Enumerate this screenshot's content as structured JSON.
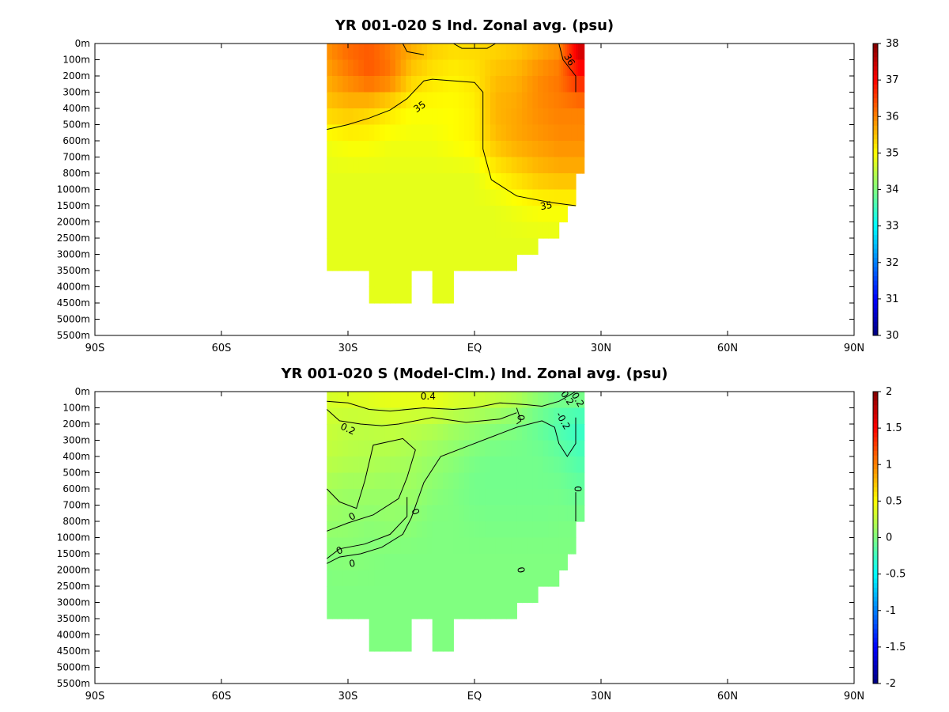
{
  "chart_data": [
    {
      "type": "heatmap",
      "title": "YR 001-020 S Ind. Zonal avg. (psu)",
      "x_tick_labels": [
        "90S",
        "60S",
        "30S",
        "EQ",
        "30N",
        "60N",
        "90N"
      ],
      "x_tick_values": [
        -90,
        -60,
        -30,
        0,
        30,
        60,
        90
      ],
      "xlim": [
        -90,
        90
      ],
      "y_tick_labels": [
        "0m",
        "100m",
        "200m",
        "300m",
        "400m",
        "500m",
        "600m",
        "700m",
        "800m",
        "1000m",
        "1500m",
        "2000m",
        "2500m",
        "3000m",
        "3500m",
        "4000m",
        "4500m",
        "5000m",
        "5500m"
      ],
      "colorbar": {
        "min": 30,
        "max": 38,
        "tick_labels": [
          "38",
          "37",
          "36",
          "35",
          "34",
          "33",
          "32",
          "31",
          "30"
        ],
        "tick_values": [
          38,
          37,
          36,
          35,
          34,
          33,
          32,
          31,
          30
        ],
        "colormap": "jet"
      },
      "contour_labels": [
        "35",
        "35",
        "36"
      ],
      "contour_levels": [
        35,
        36
      ],
      "domain": {
        "depth_levels": 18,
        "lat_edges": [
          -35,
          -30,
          -25,
          -20,
          -15,
          -10,
          -5,
          0,
          5,
          10,
          15,
          20,
          22,
          24,
          26
        ],
        "column_max_depth_index": [
          14,
          14,
          16,
          16,
          14,
          16,
          14,
          14,
          14,
          13,
          12,
          11,
          10,
          8
        ]
      },
      "field": {
        "lat": [
          -35,
          -30,
          -25,
          -20,
          -15,
          -10,
          -5,
          0,
          5,
          10,
          15,
          20,
          25
        ],
        "depth_index": [
          0,
          2,
          4,
          6,
          8,
          10,
          12,
          14,
          16
        ],
        "values": [
          [
            35.9,
            36.2,
            36.3,
            36.0,
            35.7,
            35.4,
            35.3,
            35.3,
            35.3,
            35.4,
            35.6,
            35.8,
            37.5
          ],
          [
            35.7,
            36.0,
            36.3,
            36.1,
            35.4,
            35.2,
            35.1,
            35.2,
            35.5,
            35.6,
            35.9,
            36.1,
            36.8
          ],
          [
            35.4,
            35.5,
            35.4,
            35.2,
            35.0,
            35.0,
            35.0,
            35.1,
            35.6,
            35.7,
            35.9,
            36.0,
            36.0
          ],
          [
            34.9,
            35.0,
            35.0,
            34.9,
            34.9,
            34.9,
            35.0,
            35.1,
            35.5,
            35.7,
            35.8,
            35.9,
            35.9
          ],
          [
            34.8,
            34.8,
            34.8,
            34.8,
            34.8,
            34.8,
            34.8,
            34.8,
            35.1,
            35.3,
            35.5,
            35.6,
            35.6
          ],
          [
            34.8,
            34.8,
            34.8,
            34.8,
            34.8,
            34.8,
            34.8,
            34.8,
            34.8,
            34.9,
            35.0,
            35.0,
            35.0
          ],
          [
            34.8,
            34.8,
            34.8,
            34.8,
            34.8,
            34.8,
            34.8,
            34.8,
            34.8,
            34.8,
            34.8,
            34.8,
            34.8
          ],
          [
            34.8,
            34.8,
            34.8,
            34.8,
            34.8,
            34.8,
            34.8,
            34.8,
            34.8,
            34.8,
            34.8,
            34.8,
            34.8
          ],
          [
            34.8,
            34.8,
            34.8,
            34.8,
            34.8,
            34.8,
            34.8,
            34.8,
            34.8,
            34.8,
            34.8,
            34.8,
            34.8
          ]
        ]
      }
    },
    {
      "type": "heatmap",
      "title": "YR 001-020 S (Model-Clm.) Ind. Zonal avg. (psu)",
      "x_tick_labels": [
        "90S",
        "60S",
        "30S",
        "EQ",
        "30N",
        "60N",
        "90N"
      ],
      "x_tick_values": [
        -90,
        -60,
        -30,
        0,
        30,
        60,
        90
      ],
      "xlim": [
        -90,
        90
      ],
      "y_tick_labels": [
        "0m",
        "100m",
        "200m",
        "300m",
        "400m",
        "500m",
        "600m",
        "700m",
        "800m",
        "1000m",
        "1500m",
        "2000m",
        "2500m",
        "3000m",
        "3500m",
        "4000m",
        "4500m",
        "5000m",
        "5500m"
      ],
      "colorbar": {
        "min": -2,
        "max": 2,
        "tick_labels": [
          "2",
          "1.5",
          "1",
          "0.5",
          "0",
          "-0.5",
          "-1",
          "-1.5",
          "-2"
        ],
        "tick_values": [
          2,
          1.5,
          1,
          0.5,
          0,
          -0.5,
          -1,
          -1.5,
          -2
        ],
        "colormap": "jet"
      },
      "contour_labels": [
        "0.4",
        "0.2",
        "0.2",
        "-0.2",
        "0.2",
        "0",
        "0",
        "0",
        "0",
        "0",
        "0",
        "0"
      ],
      "contour_levels": [
        -0.2,
        0,
        0.2,
        0.4
      ],
      "domain": {
        "depth_levels": 18,
        "lat_edges": [
          -35,
          -30,
          -25,
          -20,
          -15,
          -10,
          -5,
          0,
          5,
          10,
          15,
          20,
          22,
          24,
          26
        ],
        "column_max_depth_index": [
          14,
          14,
          16,
          16,
          14,
          16,
          14,
          14,
          14,
          13,
          12,
          11,
          10,
          8
        ]
      },
      "field": {
        "lat": [
          -35,
          -30,
          -25,
          -20,
          -15,
          -10,
          -5,
          0,
          5,
          10,
          15,
          20,
          25
        ],
        "depth_index": [
          0,
          2,
          4,
          6,
          8,
          10,
          12,
          14,
          16
        ],
        "values": [
          [
            0.35,
            0.4,
            0.42,
            0.45,
            0.45,
            0.48,
            0.42,
            0.38,
            0.32,
            0.25,
            0.1,
            0.0,
            0.05
          ],
          [
            0.3,
            0.25,
            0.25,
            0.28,
            0.25,
            0.22,
            0.15,
            0.1,
            0.05,
            0.0,
            -0.1,
            -0.2,
            -0.3
          ],
          [
            0.25,
            0.22,
            0.2,
            0.18,
            0.15,
            0.1,
            0.05,
            -0.02,
            -0.05,
            -0.05,
            -0.05,
            -0.1,
            -0.2
          ],
          [
            0.15,
            0.12,
            0.12,
            0.1,
            0.12,
            0.05,
            0.0,
            -0.05,
            -0.05,
            -0.05,
            -0.05,
            -0.05,
            -0.1
          ],
          [
            0.1,
            0.08,
            0.05,
            0.08,
            0.05,
            0.0,
            0.0,
            -0.02,
            -0.03,
            -0.03,
            -0.03,
            -0.02,
            -0.02
          ],
          [
            0.03,
            0.04,
            0.02,
            0.0,
            0.0,
            0.0,
            0.0,
            0.0,
            0.0,
            0.0,
            0.0,
            0.0,
            0.0
          ],
          [
            0.0,
            0.0,
            0.0,
            0.0,
            0.0,
            0.0,
            0.0,
            0.0,
            0.0,
            0.0,
            0.0,
            0.0,
            0.0
          ],
          [
            0.0,
            0.0,
            0.0,
            0.0,
            0.0,
            0.0,
            0.0,
            0.0,
            0.0,
            0.0,
            0.0,
            0.0,
            0.0
          ],
          [
            0.0,
            0.0,
            0.0,
            0.0,
            0.0,
            0.0,
            0.0,
            0.0,
            0.0,
            0.0,
            0.0,
            0.0,
            0.0
          ]
        ]
      }
    }
  ]
}
